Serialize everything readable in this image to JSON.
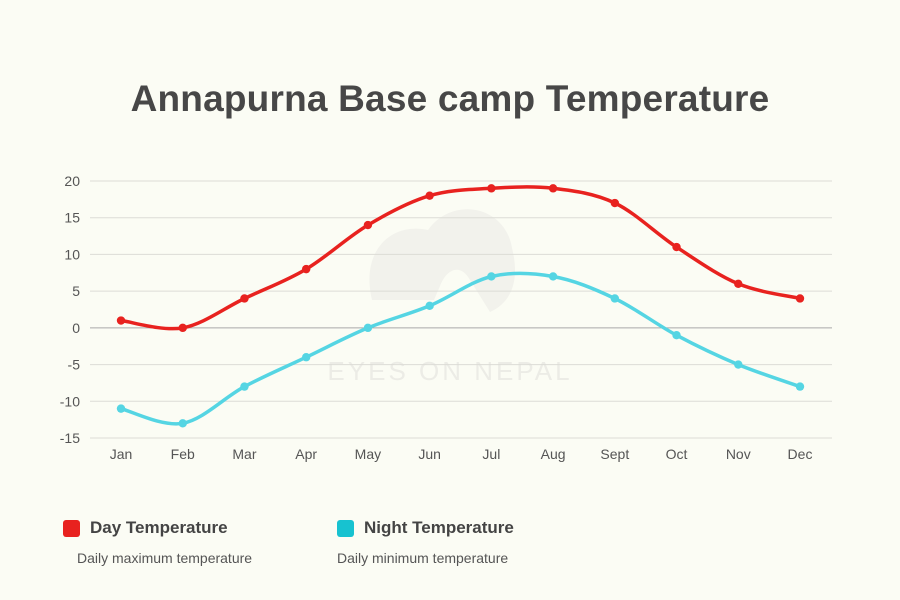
{
  "chart_data": {
    "type": "line",
    "title": "Annapurna Base camp Temperature",
    "categories": [
      "Jan",
      "Feb",
      "Mar",
      "Apr",
      "May",
      "Jun",
      "Jul",
      "Aug",
      "Sept",
      "Oct",
      "Nov",
      "Dec"
    ],
    "series": [
      {
        "name": "Day Temperature",
        "description": "Daily maximum temperature",
        "color": "#e8221f",
        "values": [
          1,
          0,
          4,
          8,
          14,
          18,
          19,
          19,
          17,
          11,
          6,
          4
        ]
      },
      {
        "name": "Night Temperature",
        "description": "Daily minimum temperature",
        "color": "#55d5e3",
        "swatch_color": "#17c2d0",
        "values": [
          -11,
          -13,
          -8,
          -4,
          0,
          3,
          7,
          7,
          4,
          -1,
          -5,
          -8
        ]
      }
    ],
    "ylim": [
      -15,
      20
    ],
    "yticks": [
      20,
      15,
      10,
      5,
      0,
      -5,
      -10,
      -15
    ],
    "grid": true,
    "legend_position": "bottom",
    "xlabel": "",
    "ylabel": ""
  },
  "watermark": {
    "text": "EYES ON NEPAL"
  }
}
